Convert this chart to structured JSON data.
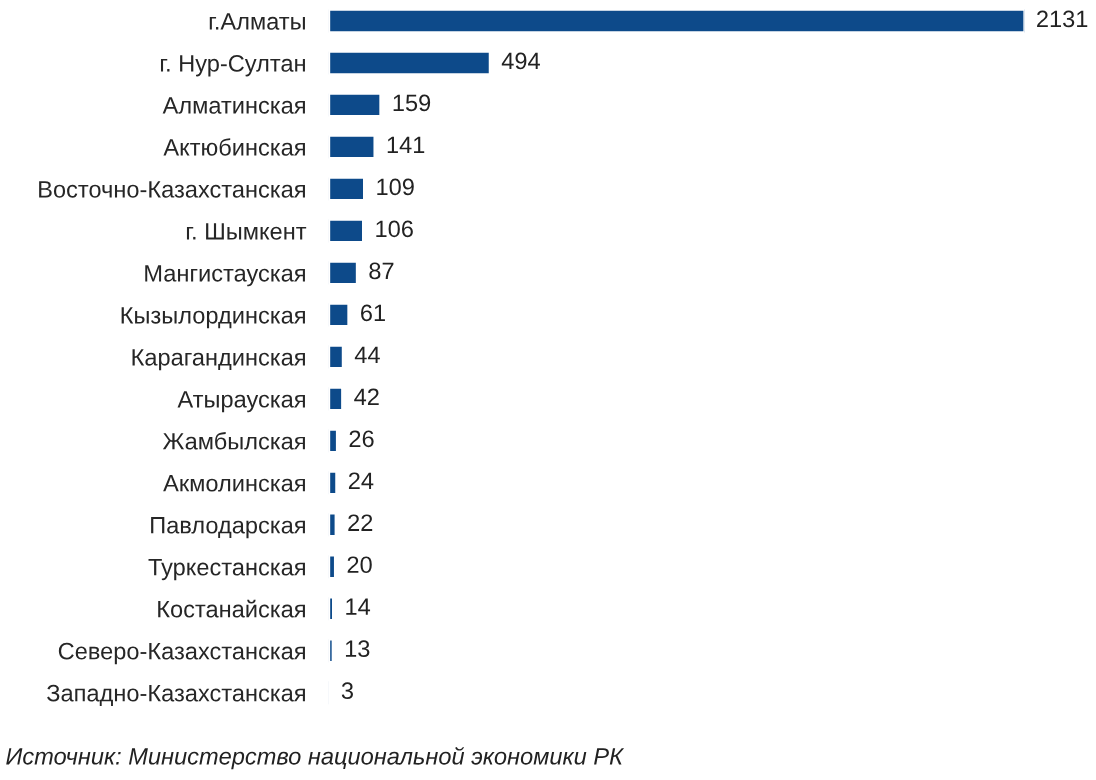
{
  "chart_data": {
    "type": "bar",
    "orientation": "horizontal",
    "categories": [
      "г.Алматы",
      "г. Нур-Султан",
      "Алматинская",
      "Актюбинская",
      "Восточно-Казахстанская",
      "г. Шымкент",
      "Мангистауская",
      "Кызылординская",
      "Карагандинская",
      "Атырауская",
      "Жамбылская",
      "Акмолинская",
      "Павлодарская",
      "Туркестанская",
      "Костанайская",
      "Северо-Казахстанская",
      "Западно-Казахстанская"
    ],
    "values": [
      2131,
      494,
      159,
      141,
      109,
      106,
      87,
      61,
      44,
      42,
      26,
      24,
      22,
      20,
      14,
      13,
      3
    ],
    "color": "#0d4a8a",
    "data_labels": true,
    "tick_labels": "y",
    "grid": false,
    "annotations": [
      "Источник: Министерство национальной экономики РК"
    ]
  }
}
